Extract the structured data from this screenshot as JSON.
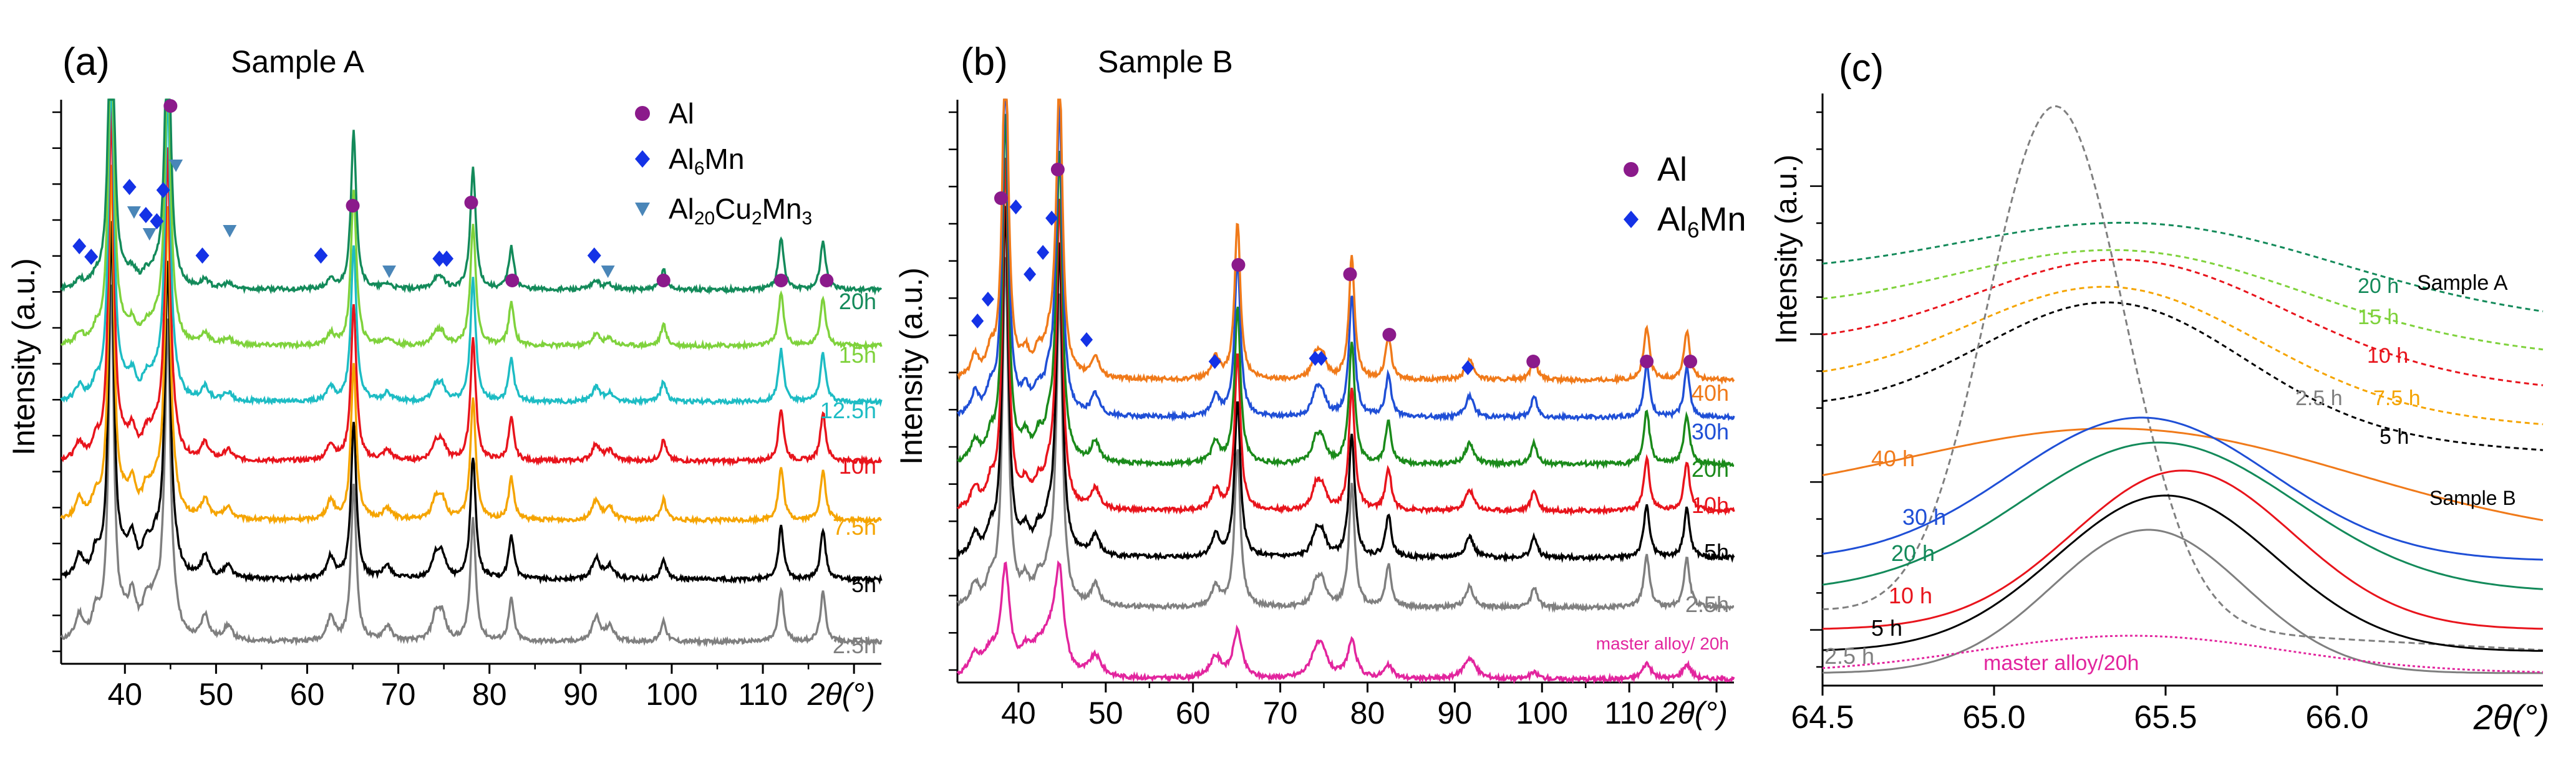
{
  "colors": {
    "2.5h": "#7f7f7f",
    "5h": "#000000",
    "7.5h": "#f5a400",
    "10h": "#e8141c",
    "12.5h": "#1dbcc4",
    "15h": "#7fd23c",
    "20h": "#138a5a",
    "30h": "#1f4fd6",
    "40h": "#f07a1a",
    "master": "#e2259e",
    "20h_b": "#1a8a1a",
    "al": "#8b1a8b",
    "al6mn": "#1432e6",
    "al20": "#4a86b8"
  },
  "chart_data": [
    {
      "type": "line",
      "panel_label": "(a)",
      "title": "Sample A",
      "ylabel": "Intensity (a.u.)",
      "xlabel": "2θ(°)",
      "xlim": [
        33,
        123
      ],
      "xticks": [
        "40",
        "50",
        "60",
        "70",
        "80",
        "90",
        "100",
        "110",
        "120"
      ],
      "legend": [
        {
          "label": "Al",
          "marker": "circle",
          "color": "#8b1a8b"
        },
        {
          "label": "Al6Mn",
          "marker": "diamond",
          "color": "#1432e6"
        },
        {
          "label": "Al20Cu2Mn3",
          "marker": "triangle",
          "color": "#4a86b8"
        }
      ],
      "legend_display": [
        {
          "parts": [
            {
              "t": "Al"
            }
          ]
        },
        {
          "parts": [
            {
              "t": "Al"
            },
            {
              "t": "6",
              "sub": true
            },
            {
              "t": "Mn"
            }
          ]
        },
        {
          "parts": [
            {
              "t": "Al"
            },
            {
              "t": "20",
              "sub": true
            },
            {
              "t": "Cu"
            },
            {
              "t": "2",
              "sub": true
            },
            {
              "t": "Mn"
            },
            {
              "t": "3",
              "sub": true
            }
          ]
        }
      ],
      "series": [
        {
          "name": "2.5h",
          "key": "2.5h"
        },
        {
          "name": "5h",
          "key": "5h"
        },
        {
          "name": "7.5h",
          "key": "7.5h"
        },
        {
          "name": "10h",
          "key": "10h"
        },
        {
          "name": "12.5h",
          "key": "12.5h"
        },
        {
          "name": "15h",
          "key": "15h"
        },
        {
          "name": "20h",
          "key": "20h"
        }
      ],
      "peaks_al": [
        38.5,
        44.7,
        65.1,
        78.2,
        82.4,
        99.1,
        112.0,
        116.6
      ],
      "peaks_al6mn": [
        35.0,
        36.8,
        40.8,
        42.3,
        43.4,
        44.2,
        48.8,
        62.6,
        74.1,
        74.8,
        91.7
      ],
      "peaks_al20": [
        39.8,
        40.8,
        42.8,
        45.5,
        51.3,
        68.8,
        93.2
      ],
      "markers_al": [
        45.0,
        65.0,
        78.0,
        82.5,
        99.1,
        112.0,
        117.0
      ],
      "markers_al6mn": [
        35.0,
        36.3,
        40.5,
        42.3,
        43.5,
        44.2,
        48.5,
        61.5,
        74.5,
        75.3,
        91.5
      ],
      "markers_al20": [
        41.0,
        42.7,
        45.6,
        51.5,
        69.0,
        93.0
      ]
    },
    {
      "type": "line",
      "panel_label": "(b)",
      "title": "Sample B",
      "ylabel": "Intensity (a.u.)",
      "xlabel": "2θ(°)",
      "xlim": [
        33,
        122
      ],
      "xticks": [
        "40",
        "50",
        "60",
        "70",
        "80",
        "90",
        "100",
        "110",
        "120"
      ],
      "legend": [
        {
          "label": "Al",
          "marker": "circle",
          "color": "#8b1a8b"
        },
        {
          "label": "Al6Mn",
          "marker": "diamond",
          "color": "#1432e6"
        }
      ],
      "legend_display": [
        {
          "parts": [
            {
              "t": "Al"
            }
          ]
        },
        {
          "parts": [
            {
              "t": "Al"
            },
            {
              "t": "6",
              "sub": true
            },
            {
              "t": "Mn"
            }
          ]
        }
      ],
      "series": [
        {
          "name": "master alloy/ 20h",
          "key": "master"
        },
        {
          "name": "2.5h",
          "key": "2.5h"
        },
        {
          "name": "5h",
          "key": "5h"
        },
        {
          "name": "10h",
          "key": "10h"
        },
        {
          "name": "20h",
          "key": "20h_b"
        },
        {
          "name": "30h",
          "key": "30h"
        },
        {
          "name": "40h",
          "key": "40h"
        }
      ],
      "peaks_al": [
        38.5,
        44.7,
        65.1,
        78.2,
        82.4,
        99.1,
        112.0,
        116.6
      ],
      "peaks_al6mn": [
        35.0,
        36.8,
        40.8,
        42.3,
        43.4,
        44.2,
        48.8,
        62.6,
        74.1,
        74.8,
        91.7
      ],
      "markers_al": [
        38.0,
        44.5,
        65.2,
        78.0,
        82.5,
        99.0,
        112.0,
        117.0
      ],
      "markers_al6mn": [
        35.3,
        36.5,
        39.7,
        41.3,
        42.8,
        43.8,
        47.8,
        62.5,
        74.0,
        74.7,
        91.5
      ]
    },
    {
      "type": "line",
      "panel_label": "(c)",
      "title": "",
      "ylabel": "Intensity (a.u.)",
      "xlabel": "2θ(°)",
      "xlim": [
        64.5,
        66.6
      ],
      "xticks": [
        "64.5",
        "65.0",
        "65.5",
        "66.0"
      ],
      "group_labels": [
        "Sample A",
        "Sample B"
      ],
      "series_a": [
        {
          "name": "20 h",
          "key": "20h",
          "center": 65.45
        },
        {
          "name": "15 h",
          "key": "15h",
          "center": 65.4
        },
        {
          "name": "10 h",
          "key": "10h",
          "center": 65.4
        },
        {
          "name": "7.5 h",
          "key": "7.5h",
          "center": 65.35
        },
        {
          "name": "5 h",
          "key": "5h",
          "center": 65.35
        },
        {
          "name": "2.5 h",
          "key": "2.5h",
          "center": 65.18
        }
      ],
      "series_b": [
        {
          "name": "40 h",
          "key": "40h",
          "center": 65.4
        },
        {
          "name": "30 h",
          "key": "30h",
          "center": 65.43
        },
        {
          "name": "20 h",
          "key": "20h",
          "center": 65.48
        },
        {
          "name": "10 h",
          "key": "10h",
          "center": 65.55
        },
        {
          "name": "5 h",
          "key": "5h",
          "center": 65.5
        },
        {
          "name": "2.5 h",
          "key": "2.5h",
          "center": 65.45
        },
        {
          "name": "master alloy/20h",
          "key": "master",
          "center": 65.4
        }
      ]
    }
  ]
}
